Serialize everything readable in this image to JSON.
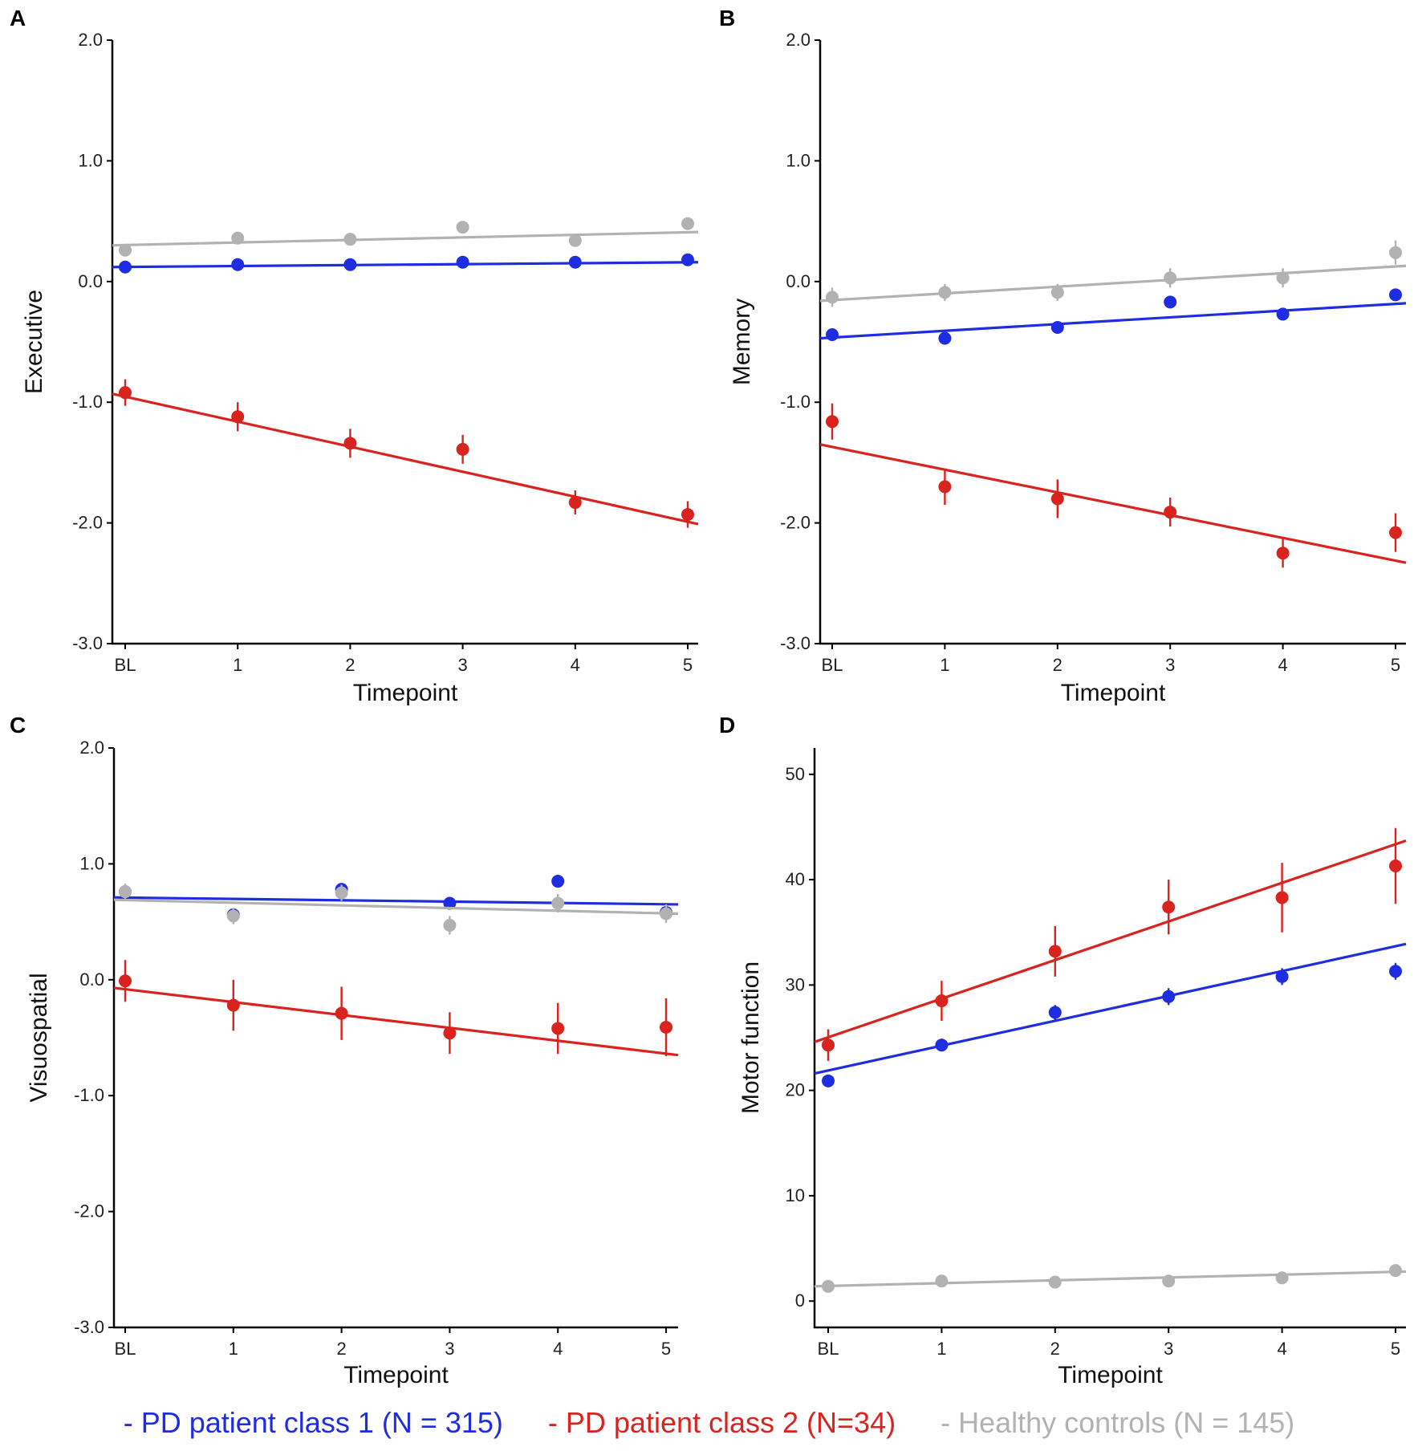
{
  "chart_data": [
    {
      "panel_label": "A",
      "type": "scatter",
      "ylabel": "Executive",
      "xlabel": "Timepoint",
      "x_ticks": [
        "BL",
        "1",
        "2",
        "3",
        "4",
        "5"
      ],
      "y_ticks": [
        "2.0",
        "1.0",
        "0.0",
        "-1.0",
        "-2.0",
        "-3.0"
      ],
      "ylim": [
        -3.0,
        2.0
      ],
      "series": [
        {
          "key": "class1",
          "points": [
            {
              "y": 0.12,
              "e": 0.04
            },
            {
              "y": 0.14,
              "e": 0.04
            },
            {
              "y": 0.14,
              "e": 0.04
            },
            {
              "y": 0.16,
              "e": 0.04
            },
            {
              "y": 0.16,
              "e": 0.04
            },
            {
              "y": 0.18,
              "e": 0.04
            }
          ],
          "fit": [
            0.12,
            0.16
          ]
        },
        {
          "key": "class2",
          "points": [
            {
              "y": -0.92,
              "e": 0.11
            },
            {
              "y": -1.12,
              "e": 0.12
            },
            {
              "y": -1.34,
              "e": 0.12
            },
            {
              "y": -1.39,
              "e": 0.12
            },
            {
              "y": -1.83,
              "e": 0.1
            },
            {
              "y": -1.93,
              "e": 0.11
            }
          ],
          "fit": [
            -0.93,
            -2.01
          ]
        },
        {
          "key": "controls",
          "points": [
            {
              "y": 0.26,
              "e": 0.04
            },
            {
              "y": 0.36,
              "e": 0.04
            },
            {
              "y": 0.35,
              "e": 0.04
            },
            {
              "y": 0.45,
              "e": 0.04
            },
            {
              "y": 0.34,
              "e": 0.04
            },
            {
              "y": 0.48,
              "e": 0.05
            }
          ],
          "fit": [
            0.3,
            0.41
          ]
        }
      ]
    },
    {
      "panel_label": "B",
      "type": "scatter",
      "ylabel": "Memory",
      "xlabel": "Timepoint",
      "x_ticks": [
        "BL",
        "1",
        "2",
        "3",
        "4",
        "5"
      ],
      "y_ticks": [
        "2.0",
        "1.0",
        "0.0",
        "-1.0",
        "-2.0",
        "-3.0"
      ],
      "ylim": [
        -3.0,
        2.0
      ],
      "series": [
        {
          "key": "class1",
          "points": [
            {
              "y": -0.44,
              "e": 0.04
            },
            {
              "y": -0.47,
              "e": 0.04
            },
            {
              "y": -0.38,
              "e": 0.04
            },
            {
              "y": -0.17,
              "e": 0.04
            },
            {
              "y": -0.27,
              "e": 0.04
            },
            {
              "y": -0.11,
              "e": 0.05
            }
          ],
          "fit": [
            -0.47,
            -0.18
          ]
        },
        {
          "key": "class2",
          "points": [
            {
              "y": -1.16,
              "e": 0.15
            },
            {
              "y": -1.7,
              "e": 0.15
            },
            {
              "y": -1.8,
              "e": 0.16
            },
            {
              "y": -1.91,
              "e": 0.12
            },
            {
              "y": -2.25,
              "e": 0.12
            },
            {
              "y": -2.08,
              "e": 0.16
            }
          ],
          "fit": [
            -1.35,
            -2.33
          ]
        },
        {
          "key": "controls",
          "points": [
            {
              "y": -0.13,
              "e": 0.08
            },
            {
              "y": -0.09,
              "e": 0.07
            },
            {
              "y": -0.09,
              "e": 0.07
            },
            {
              "y": 0.03,
              "e": 0.08
            },
            {
              "y": 0.03,
              "e": 0.08
            },
            {
              "y": 0.24,
              "e": 0.1
            }
          ],
          "fit": [
            -0.16,
            0.13
          ]
        }
      ]
    },
    {
      "panel_label": "C",
      "type": "scatter",
      "ylabel": "Visuospatial",
      "xlabel": "Timepoint",
      "x_ticks": [
        "BL",
        "1",
        "2",
        "3",
        "4",
        "5"
      ],
      "y_ticks": [
        "2.0",
        "1.0",
        "0.0",
        "-1.0",
        "-2.0",
        "-3.0"
      ],
      "ylim": [
        -3.0,
        2.0
      ],
      "series": [
        {
          "key": "class1",
          "points": [
            {
              "y": 0.76,
              "e": 0.04
            },
            {
              "y": 0.56,
              "e": 0.05
            },
            {
              "y": 0.78,
              "e": 0.04
            },
            {
              "y": 0.66,
              "e": 0.04
            },
            {
              "y": 0.85,
              "e": 0.04
            },
            {
              "y": 0.58,
              "e": 0.05
            }
          ],
          "fit": [
            0.71,
            0.65
          ]
        },
        {
          "key": "controls",
          "points": [
            {
              "y": 0.76,
              "e": 0.07
            },
            {
              "y": 0.55,
              "e": 0.07
            },
            {
              "y": 0.75,
              "e": 0.07
            },
            {
              "y": 0.47,
              "e": 0.08
            },
            {
              "y": 0.66,
              "e": 0.08
            },
            {
              "y": 0.57,
              "e": 0.08
            }
          ],
          "fit": [
            0.69,
            0.57
          ]
        },
        {
          "key": "class2",
          "points": [
            {
              "y": -0.01,
              "e": 0.18
            },
            {
              "y": -0.22,
              "e": 0.22
            },
            {
              "y": -0.29,
              "e": 0.23
            },
            {
              "y": -0.46,
              "e": 0.18
            },
            {
              "y": -0.42,
              "e": 0.22
            },
            {
              "y": -0.41,
              "e": 0.25
            }
          ],
          "fit": [
            -0.07,
            -0.65
          ]
        }
      ]
    },
    {
      "panel_label": "D",
      "type": "scatter",
      "ylabel": "Motor function",
      "xlabel": "Timepoint",
      "x_ticks": [
        "BL",
        "1",
        "2",
        "3",
        "4",
        "5"
      ],
      "y_ticks": [
        "50",
        "40",
        "30",
        "20",
        "10",
        "0"
      ],
      "ylim": [
        -2.5,
        52.5
      ],
      "series": [
        {
          "key": "class1",
          "points": [
            {
              "y": 20.9,
              "e": 0.5
            },
            {
              "y": 24.3,
              "e": 0.6
            },
            {
              "y": 27.4,
              "e": 0.7
            },
            {
              "y": 28.9,
              "e": 0.8
            },
            {
              "y": 30.8,
              "e": 0.8
            },
            {
              "y": 31.3,
              "e": 0.8
            }
          ],
          "fit": [
            21.6,
            33.9
          ]
        },
        {
          "key": "class2",
          "points": [
            {
              "y": 24.3,
              "e": 1.5
            },
            {
              "y": 28.5,
              "e": 1.9
            },
            {
              "y": 33.2,
              "e": 2.4
            },
            {
              "y": 37.4,
              "e": 2.6
            },
            {
              "y": 38.3,
              "e": 3.3
            },
            {
              "y": 41.3,
              "e": 3.6
            }
          ],
          "fit": [
            24.6,
            43.7
          ]
        },
        {
          "key": "controls",
          "points": [
            {
              "y": 1.4,
              "e": 0.3
            },
            {
              "y": 1.9,
              "e": 0.3
            },
            {
              "y": 1.8,
              "e": 0.3
            },
            {
              "y": 1.9,
              "e": 0.3
            },
            {
              "y": 2.2,
              "e": 0.3
            },
            {
              "y": 2.9,
              "e": 0.3
            }
          ],
          "fit": [
            1.4,
            2.8
          ]
        }
      ]
    }
  ],
  "legend": [
    {
      "key": "class1",
      "label": "- PD patient class 1 (N = 315)",
      "color": "#1f2de0"
    },
    {
      "key": "class2",
      "label": "- PD patient class 2 (N=34)",
      "color": "#d8231f"
    },
    {
      "key": "controls",
      "label": "- Healthy controls (N = 145)",
      "color": "#b2b2b2"
    }
  ]
}
